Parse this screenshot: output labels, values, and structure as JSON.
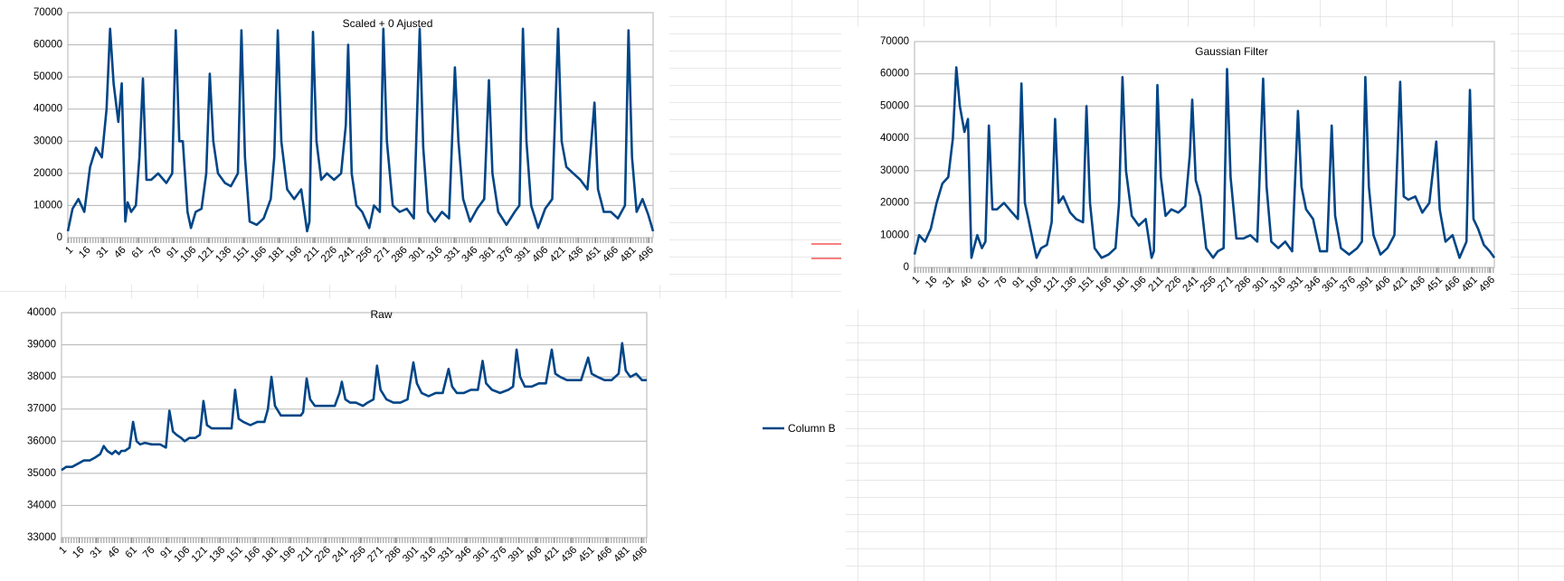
{
  "chart_data": [
    {
      "type": "line",
      "title": "Scaled + 0 Ajusted",
      "grid": true,
      "xlim": [
        1,
        500
      ],
      "xticks": [
        1,
        16,
        31,
        46,
        61,
        76,
        91,
        106,
        121,
        136,
        151,
        166,
        181,
        196,
        211,
        226,
        241,
        256,
        271,
        286,
        301,
        316,
        331,
        346,
        361,
        376,
        391,
        406,
        421,
        436,
        451,
        466,
        481,
        496
      ],
      "ylim": [
        0,
        70000
      ],
      "yticks": [
        0,
        10000,
        20000,
        30000,
        40000,
        50000,
        60000,
        70000
      ],
      "x": [
        1,
        5,
        10,
        15,
        20,
        25,
        30,
        34,
        37,
        40,
        44,
        47,
        50,
        52,
        55,
        59,
        62,
        65,
        68,
        72,
        78,
        85,
        90,
        93,
        96,
        99,
        103,
        106,
        110,
        115,
        119,
        122,
        125,
        129,
        135,
        140,
        146,
        149,
        152,
        156,
        162,
        168,
        174,
        177,
        180,
        183,
        188,
        194,
        200,
        205,
        207,
        210,
        213,
        217,
        222,
        228,
        234,
        238,
        240,
        243,
        247,
        252,
        258,
        262,
        267,
        270,
        273,
        278,
        284,
        290,
        296,
        301,
        304,
        308,
        314,
        320,
        326,
        331,
        334,
        338,
        344,
        350,
        356,
        360,
        363,
        368,
        375,
        382,
        386,
        389,
        392,
        396,
        402,
        408,
        414,
        419,
        422,
        426,
        432,
        438,
        444,
        450,
        453,
        458,
        464,
        470,
        476,
        479,
        482,
        486,
        491,
        496,
        500
      ],
      "series": [
        {
          "color": "#004586",
          "values": [
            2000,
            9000,
            12000,
            8000,
            22000,
            28000,
            25000,
            40000,
            65000,
            48000,
            36000,
            48000,
            5000,
            11000,
            8000,
            10000,
            25000,
            49500,
            18000,
            18000,
            20000,
            17000,
            20000,
            64500,
            30000,
            30000,
            8000,
            3000,
            8000,
            9000,
            20000,
            51000,
            30000,
            20000,
            17000,
            16000,
            20000,
            64500,
            25000,
            5000,
            4000,
            6000,
            12000,
            25000,
            64500,
            30000,
            15000,
            12000,
            15000,
            2000,
            5000,
            64000,
            30000,
            18000,
            20000,
            18000,
            20000,
            35000,
            60000,
            20000,
            10000,
            8000,
            3000,
            10000,
            8000,
            65000,
            30000,
            10000,
            8000,
            9000,
            6000,
            65000,
            28000,
            8000,
            5000,
            8000,
            6000,
            53000,
            30000,
            12000,
            5000,
            9000,
            12000,
            49000,
            20000,
            8000,
            4000,
            8000,
            10000,
            65000,
            30000,
            10000,
            3000,
            9000,
            12000,
            65000,
            30000,
            22000,
            20000,
            18000,
            15000,
            42000,
            15000,
            8000,
            8000,
            6000,
            10000,
            64500,
            25000,
            8000,
            12000,
            7000,
            2000
          ]
        }
      ]
    },
    {
      "type": "line",
      "title": "Gaussian Filter",
      "grid": true,
      "xlim": [
        1,
        500
      ],
      "xticks": [
        1,
        16,
        31,
        46,
        61,
        76,
        91,
        106,
        121,
        136,
        151,
        166,
        181,
        196,
        211,
        226,
        241,
        256,
        271,
        286,
        301,
        316,
        331,
        346,
        361,
        376,
        391,
        406,
        421,
        436,
        451,
        466,
        481,
        496
      ],
      "ylim": [
        0,
        70000
      ],
      "yticks": [
        0,
        10000,
        20000,
        30000,
        40000,
        50000,
        60000,
        70000
      ],
      "x": [
        1,
        5,
        10,
        15,
        20,
        25,
        30,
        34,
        37,
        40,
        44,
        47,
        50,
        52,
        55,
        59,
        62,
        65,
        68,
        72,
        78,
        85,
        90,
        93,
        96,
        99,
        103,
        106,
        110,
        115,
        119,
        122,
        125,
        129,
        135,
        140,
        146,
        149,
        152,
        156,
        162,
        168,
        174,
        177,
        180,
        183,
        188,
        194,
        200,
        205,
        207,
        210,
        213,
        217,
        222,
        228,
        234,
        238,
        240,
        243,
        247,
        252,
        258,
        262,
        267,
        270,
        273,
        278,
        284,
        290,
        296,
        301,
        304,
        308,
        314,
        320,
        326,
        331,
        334,
        338,
        344,
        350,
        356,
        360,
        363,
        368,
        375,
        382,
        386,
        389,
        392,
        396,
        402,
        408,
        414,
        419,
        422,
        426,
        432,
        438,
        444,
        450,
        453,
        458,
        464,
        470,
        476,
        479,
        482,
        486,
        491,
        496,
        500
      ],
      "series": [
        {
          "color": "#004586",
          "values": [
            4000,
            10000,
            8000,
            12000,
            20000,
            26000,
            28000,
            40000,
            62000,
            50000,
            42000,
            46000,
            3000,
            6000,
            10000,
            6000,
            8000,
            44000,
            18000,
            18000,
            20000,
            17000,
            15000,
            57000,
            20000,
            15000,
            8000,
            3000,
            6000,
            7000,
            14000,
            46000,
            20000,
            22000,
            17000,
            15000,
            14000,
            50000,
            20000,
            6000,
            3000,
            4000,
            6000,
            20000,
            59000,
            30000,
            16000,
            13000,
            15000,
            3000,
            5000,
            56500,
            28000,
            16000,
            18000,
            17000,
            19000,
            35000,
            52000,
            27000,
            22000,
            6000,
            3000,
            5000,
            6000,
            61500,
            28000,
            9000,
            9000,
            10000,
            8000,
            58500,
            25000,
            8000,
            6000,
            8000,
            5000,
            48500,
            25000,
            18000,
            15000,
            5000,
            5000,
            44000,
            16000,
            6000,
            4000,
            6000,
            8000,
            59000,
            25000,
            10000,
            4000,
            6000,
            10000,
            57500,
            22000,
            21000,
            22000,
            17000,
            20000,
            39000,
            18000,
            8000,
            10000,
            3000,
            8000,
            55000,
            15000,
            12000,
            7000,
            5000,
            3000
          ]
        }
      ]
    },
    {
      "type": "line",
      "title": "Raw",
      "grid": true,
      "legend": "right",
      "xlim": [
        1,
        500
      ],
      "xticks": [
        1,
        16,
        31,
        46,
        61,
        76,
        91,
        106,
        121,
        136,
        151,
        166,
        181,
        196,
        211,
        226,
        241,
        256,
        271,
        286,
        301,
        316,
        331,
        346,
        361,
        376,
        391,
        406,
        421,
        436,
        451,
        466,
        481,
        496
      ],
      "ylim": [
        33000,
        40000
      ],
      "yticks": [
        33000,
        34000,
        35000,
        36000,
        37000,
        38000,
        39000,
        40000
      ],
      "x": [
        1,
        5,
        10,
        15,
        20,
        25,
        30,
        34,
        37,
        40,
        44,
        47,
        50,
        52,
        55,
        59,
        62,
        65,
        68,
        72,
        78,
        85,
        90,
        93,
        96,
        99,
        103,
        106,
        110,
        115,
        119,
        122,
        125,
        129,
        135,
        140,
        146,
        149,
        152,
        156,
        162,
        168,
        174,
        177,
        180,
        183,
        188,
        194,
        200,
        205,
        207,
        210,
        213,
        217,
        222,
        228,
        234,
        238,
        240,
        243,
        247,
        252,
        258,
        262,
        267,
        270,
        273,
        278,
        284,
        290,
        296,
        301,
        304,
        308,
        314,
        320,
        326,
        331,
        334,
        338,
        344,
        350,
        356,
        360,
        363,
        368,
        375,
        382,
        386,
        389,
        392,
        396,
        402,
        408,
        414,
        419,
        422,
        426,
        432,
        438,
        444,
        450,
        453,
        458,
        464,
        470,
        476,
        479,
        482,
        486,
        491,
        496,
        500
      ],
      "series": [
        {
          "name": "Column B",
          "color": "#004586",
          "values": [
            35100,
            35200,
            35200,
            35300,
            35400,
            35400,
            35500,
            35600,
            35850,
            35700,
            35600,
            35700,
            35600,
            35700,
            35700,
            35800,
            36600,
            36000,
            35900,
            35950,
            35900,
            35900,
            35800,
            36950,
            36300,
            36200,
            36100,
            36000,
            36100,
            36100,
            36200,
            37250,
            36500,
            36400,
            36400,
            36400,
            36400,
            37600,
            36700,
            36600,
            36500,
            36600,
            36600,
            37000,
            38000,
            37100,
            36800,
            36800,
            36800,
            36800,
            36900,
            37950,
            37300,
            37100,
            37100,
            37100,
            37100,
            37500,
            37850,
            37300,
            37200,
            37200,
            37100,
            37200,
            37300,
            38350,
            37600,
            37300,
            37200,
            37200,
            37300,
            38450,
            37800,
            37500,
            37400,
            37500,
            37500,
            38250,
            37700,
            37500,
            37500,
            37600,
            37600,
            38500,
            37800,
            37600,
            37500,
            37600,
            37700,
            38850,
            38000,
            37700,
            37700,
            37800,
            37800,
            38850,
            38100,
            38000,
            37900,
            37900,
            37900,
            38600,
            38100,
            38000,
            37900,
            37900,
            38100,
            39050,
            38200,
            38000,
            38100,
            37900,
            37900
          ]
        }
      ]
    }
  ]
}
